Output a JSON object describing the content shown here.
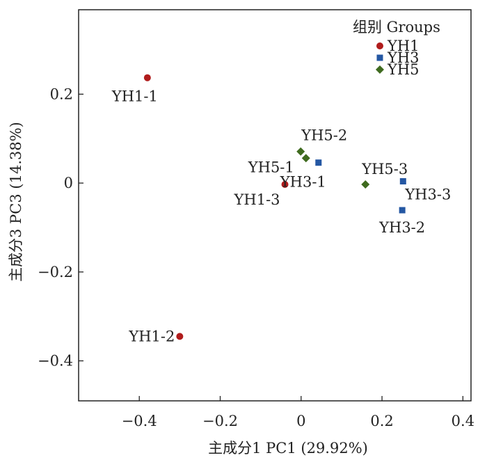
{
  "chart_data": {
    "type": "scatter",
    "title": "",
    "xlabel": "主成分1 PC1 (29.92%)",
    "ylabel": "主成分3 PC3 (14.38%)",
    "xlim": [
      -0.55,
      0.42
    ],
    "ylim": [
      -0.49,
      0.39
    ],
    "x_ticks": [
      -0.4,
      -0.2,
      0,
      0.2,
      0.4
    ],
    "x_tick_labels": [
      "−0.4",
      "−0.2",
      "0",
      "0.2",
      "0.4"
    ],
    "y_ticks": [
      -0.4,
      -0.2,
      0,
      0.2
    ],
    "y_tick_labels": [
      "−0.4",
      "−0.2",
      "0",
      "0.2"
    ],
    "grid": false,
    "legend": {
      "title": "组别 Groups",
      "placement": "top-right"
    },
    "series": [
      {
        "name": "YH1",
        "marker": "circle",
        "color": "#b01c1c",
        "points": [
          {
            "label": "YH1-1",
            "x": -0.38,
            "y": 0.237
          },
          {
            "label": "YH1-2",
            "x": -0.3,
            "y": -0.345
          },
          {
            "label": "YH1-3",
            "x": -0.04,
            "y": -0.003
          }
        ]
      },
      {
        "name": "YH3",
        "marker": "square",
        "color": "#2457a3",
        "points": [
          {
            "label": "YH3-1",
            "x": 0.043,
            "y": 0.046
          },
          {
            "label": "YH3-2",
            "x": 0.25,
            "y": -0.061
          },
          {
            "label": "YH3-3",
            "x": 0.252,
            "y": 0.004
          }
        ]
      },
      {
        "name": "YH5",
        "marker": "diamond",
        "color": "#3f6b1f",
        "points": [
          {
            "label": "YH5-1",
            "x": 0.012,
            "y": 0.056
          },
          {
            "label": "YH5-2",
            "x": -0.001,
            "y": 0.071
          },
          {
            "label": "YH5-3",
            "x": 0.159,
            "y": -0.003
          }
        ]
      }
    ]
  }
}
